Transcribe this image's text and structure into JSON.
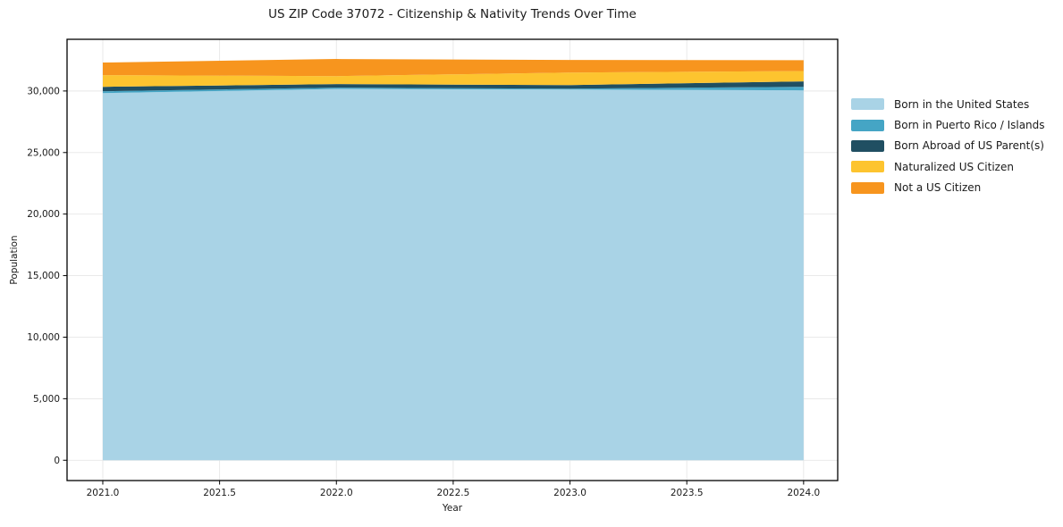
{
  "figure": {
    "title": "US ZIP Code 37072 - Citizenship & Nativity Trends Over Time",
    "xlabel": "Year",
    "ylabel": "Population"
  },
  "chart_data": {
    "type": "area",
    "stacked": true,
    "title": "US ZIP Code 37072 - Citizenship & Nativity Trends Over Time",
    "xlabel": "Year",
    "ylabel": "Population",
    "x": [
      2021,
      2022,
      2023,
      2024
    ],
    "series": [
      {
        "name": "Born in the United States",
        "color": "#a9d3e6",
        "values": [
          29830,
          30160,
          30120,
          30050
        ]
      },
      {
        "name": "Born in Puerto Rico / Islands",
        "color": "#45a5c5",
        "values": [
          150,
          110,
          70,
          290
        ]
      },
      {
        "name": "Born Abroad of US Parent(s)",
        "color": "#204f62",
        "values": [
          360,
          290,
          290,
          440
        ]
      },
      {
        "name": "Naturalized US Citizen",
        "color": "#fdc42f",
        "values": [
          950,
          650,
          1020,
          840
        ]
      },
      {
        "name": "Not a US Citizen",
        "color": "#f7951e",
        "values": [
          1020,
          1390,
          1020,
          880
        ]
      }
    ],
    "xlim": [
      2020.847,
      2024.146
    ],
    "ylim": [
      -1650,
      34200
    ],
    "xticks": {
      "values": [
        2021.0,
        2021.5,
        2022.0,
        2022.5,
        2023.0,
        2023.5,
        2024.0
      ],
      "labels": [
        "2021.0",
        "2021.5",
        "2022.0",
        "2022.5",
        "2023.0",
        "2023.5",
        "2024.0"
      ]
    },
    "yticks": {
      "values": [
        0,
        5000,
        10000,
        15000,
        20000,
        25000,
        30000
      ],
      "labels": [
        "0",
        "5,000",
        "10,000",
        "15,000",
        "20,000",
        "25,000",
        "30,000"
      ]
    },
    "grid": {
      "show": true,
      "color": "#e7e7e7"
    },
    "legend_position": "right",
    "axis_color": "#000000"
  }
}
